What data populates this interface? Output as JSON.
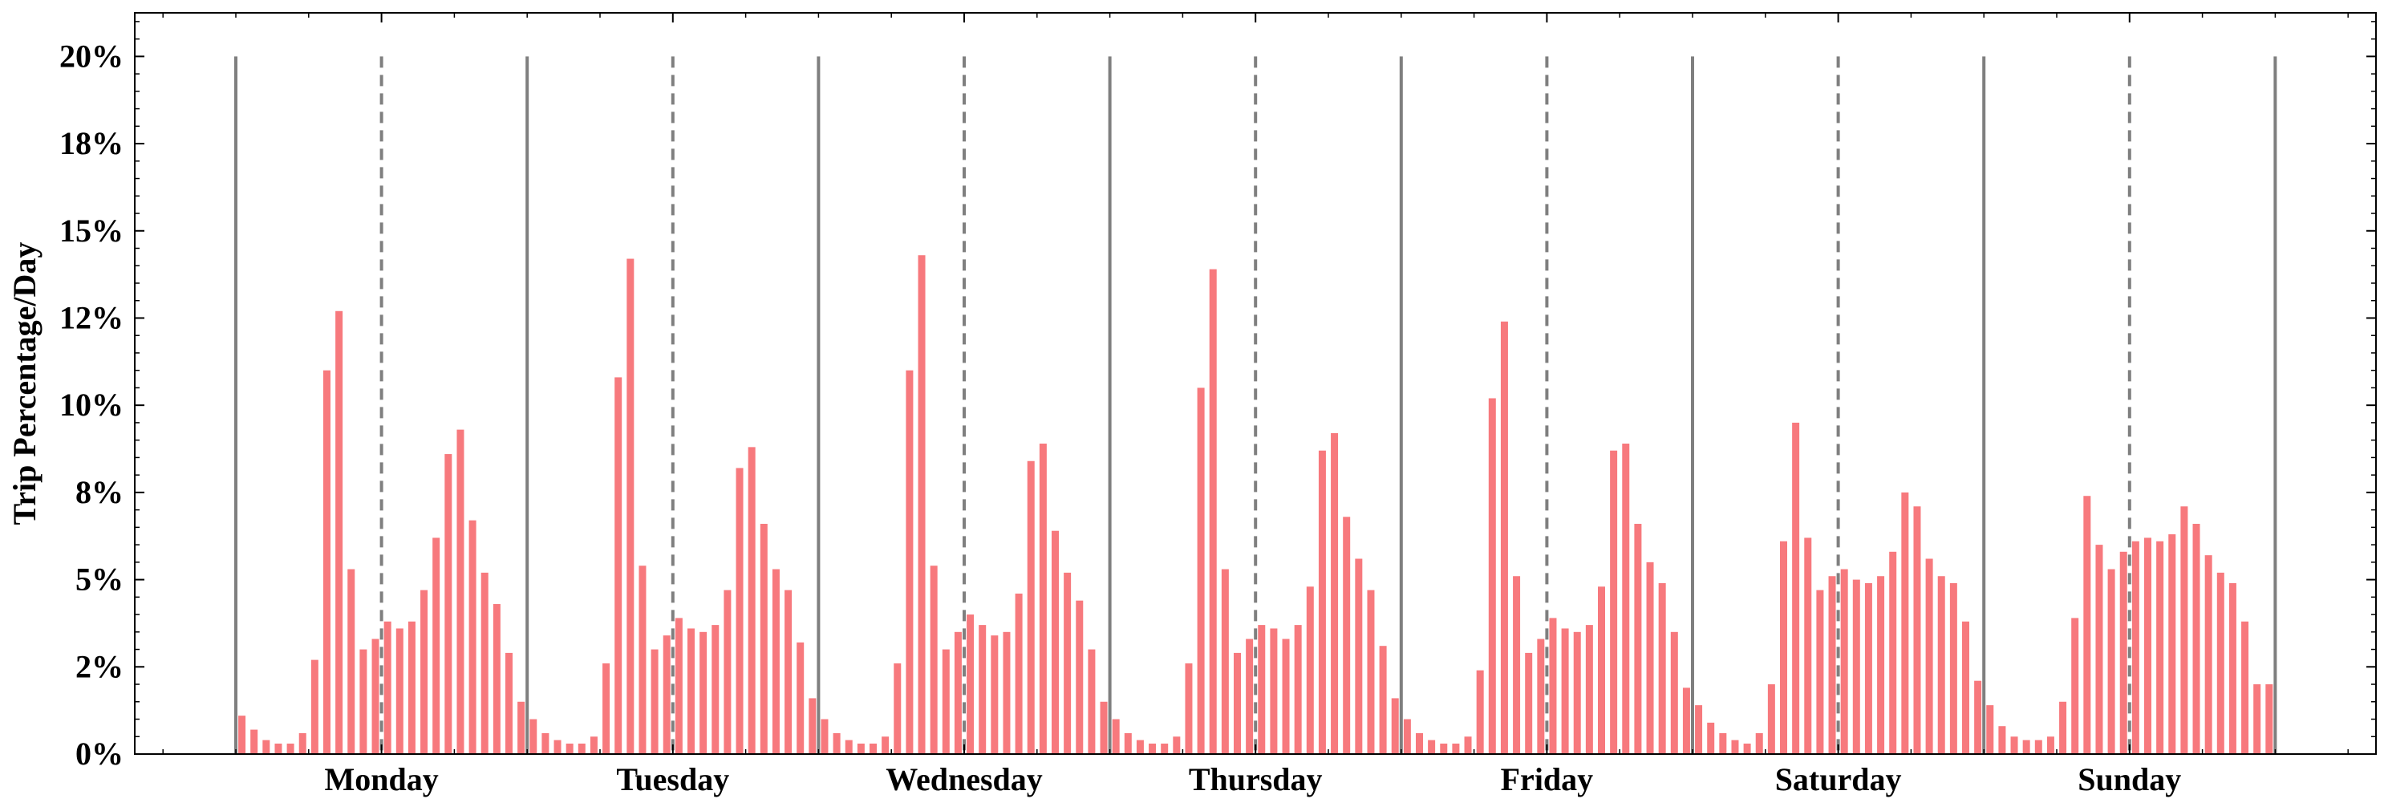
{
  "chart_data": {
    "type": "bar",
    "ylabel": "Trip Percentage/Day",
    "xlabel": "",
    "ylim": [
      0,
      21.25
    ],
    "yticks": [
      {
        "value": 0,
        "label": "0%"
      },
      {
        "value": 2.5,
        "label": "2%"
      },
      {
        "value": 5,
        "label": "5%"
      },
      {
        "value": 7.5,
        "label": "8%"
      },
      {
        "value": 10,
        "label": "10%"
      },
      {
        "value": 12.5,
        "label": "12%"
      },
      {
        "value": 15,
        "label": "15%"
      },
      {
        "value": 17.5,
        "label": "18%"
      },
      {
        "value": 20,
        "label": "20%"
      }
    ],
    "days": [
      {
        "label": "Monday",
        "values": [
          1.1,
          0.7,
          0.4,
          0.3,
          0.3,
          0.6,
          2.7,
          11.0,
          12.7,
          5.3,
          3.0,
          3.3,
          3.8,
          3.6,
          3.8,
          4.7,
          6.2,
          8.6,
          9.3,
          6.7,
          5.2,
          4.3,
          2.9,
          1.5
        ]
      },
      {
        "label": "Tuesday",
        "values": [
          1.0,
          0.6,
          0.4,
          0.3,
          0.3,
          0.5,
          2.6,
          10.8,
          14.2,
          5.4,
          3.0,
          3.4,
          3.9,
          3.6,
          3.5,
          3.7,
          4.7,
          8.2,
          8.8,
          6.6,
          5.3,
          4.7,
          3.2,
          1.6
        ]
      },
      {
        "label": "Wednesday",
        "values": [
          1.0,
          0.6,
          0.4,
          0.3,
          0.3,
          0.5,
          2.6,
          11.0,
          14.3,
          5.4,
          3.0,
          3.5,
          4.0,
          3.7,
          3.4,
          3.5,
          4.6,
          8.4,
          8.9,
          6.4,
          5.2,
          4.4,
          3.0,
          1.5
        ]
      },
      {
        "label": "Thursday",
        "values": [
          1.0,
          0.6,
          0.4,
          0.3,
          0.3,
          0.5,
          2.6,
          10.5,
          13.9,
          5.3,
          2.9,
          3.3,
          3.7,
          3.6,
          3.3,
          3.7,
          4.8,
          8.7,
          9.2,
          6.8,
          5.6,
          4.7,
          3.1,
          1.6
        ]
      },
      {
        "label": "Friday",
        "values": [
          1.0,
          0.6,
          0.4,
          0.3,
          0.3,
          0.5,
          2.4,
          10.2,
          12.4,
          5.1,
          2.9,
          3.3,
          3.9,
          3.6,
          3.5,
          3.7,
          4.8,
          8.7,
          8.9,
          6.6,
          5.5,
          4.9,
          3.5,
          1.9
        ]
      },
      {
        "label": "Saturday",
        "values": [
          1.4,
          0.9,
          0.6,
          0.4,
          0.3,
          0.6,
          2.0,
          6.1,
          9.5,
          6.2,
          4.7,
          5.1,
          5.3,
          5.0,
          4.9,
          5.1,
          5.8,
          7.5,
          7.1,
          5.6,
          5.1,
          4.9,
          3.8,
          2.1
        ]
      },
      {
        "label": "Sunday",
        "values": [
          1.4,
          0.8,
          0.5,
          0.4,
          0.4,
          0.5,
          1.5,
          3.9,
          7.4,
          6.0,
          5.3,
          5.8,
          6.1,
          6.2,
          6.1,
          6.3,
          7.1,
          6.6,
          5.7,
          5.2,
          4.9,
          3.8,
          2.0,
          2.0
        ]
      }
    ],
    "grid": false,
    "colors": {
      "bar": "#f7797d",
      "divider": "#7f7f7f",
      "axis": "#000000"
    }
  }
}
